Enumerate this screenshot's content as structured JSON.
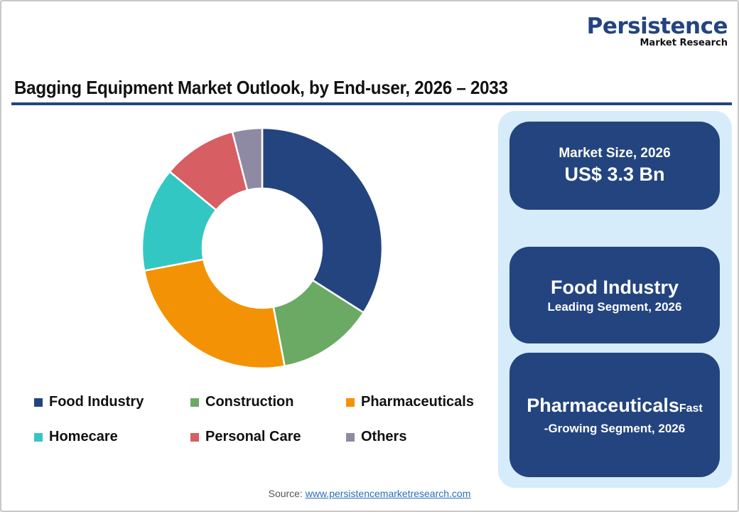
{
  "logo": {
    "main": "Persistence",
    "sub": "Market Research"
  },
  "title": "Bagging Equipment Market Outlook, by End-user, 2026 – 2033",
  "chart_data": {
    "type": "pie",
    "subtype": "donut",
    "title": "Bagging Equipment Market Outlook, by End-user, 2026 – 2033",
    "categories": [
      "Food Industry",
      "Construction",
      "Pharmaceuticals",
      "Homecare",
      "Personal Care",
      "Others"
    ],
    "values": [
      34,
      13,
      25,
      14,
      10,
      4
    ],
    "unit": "% share (estimated from slice angles)",
    "colors": [
      "#23447f",
      "#6aaa64",
      "#f39205",
      "#33c7c4",
      "#d75e63",
      "#8e8aa3"
    ],
    "legend_position": "bottom",
    "start_angle": "12 o'clock, clockwise"
  },
  "legend": [
    {
      "label": "Food Industry",
      "color": "#23447f"
    },
    {
      "label": "Construction",
      "color": "#6aaa64"
    },
    {
      "label": "Pharmaceuticals",
      "color": "#f39205"
    },
    {
      "label": "Homecare",
      "color": "#33c7c4"
    },
    {
      "label": "Personal Care",
      "color": "#d75e63"
    },
    {
      "label": "Others",
      "color": "#8e8aa3"
    }
  ],
  "cards": {
    "market_size": {
      "label": "Market Size, 2026",
      "value": "US$ 3.3 Bn"
    },
    "leading": {
      "value": "Food Industry",
      "label": "Leading Segment, 2026"
    },
    "fastest": {
      "value": "Pharmaceuticals",
      "suffix": "Fast",
      "label": "-Growing Segment, 2026"
    }
  },
  "source": {
    "prefix": "Source: ",
    "link": "www.persistencemarketresearch.com"
  },
  "colors": {
    "brand": "#23447f",
    "panel": "#d6ecfa"
  }
}
